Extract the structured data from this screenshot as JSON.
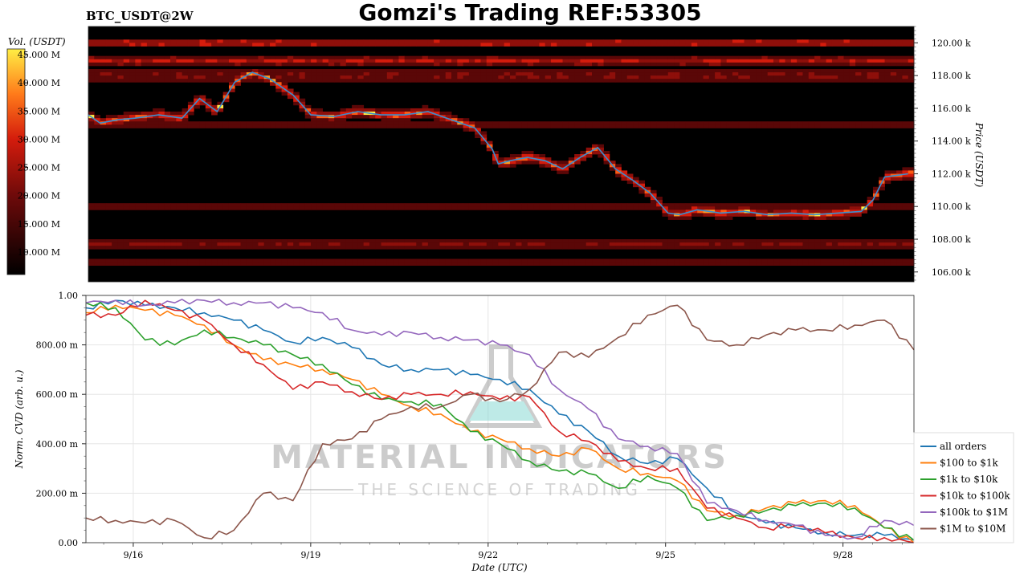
{
  "header": {
    "title": "Gomzi's Trading REF:53305",
    "subtitle": "BTC_USDT@2W"
  },
  "watermark": {
    "line1": "MATERIAL INDICATORS",
    "line2": "THE SCIENCE OF TRADING"
  },
  "colors": {
    "heat_low": "#000000",
    "heat_mid": "#d41c0c",
    "heat_high": "#ffee44",
    "price_line": "#3a8fd0",
    "all_orders": "#1f77b4",
    "usd_100_1k": "#ff7f0e",
    "usd_1k_10k": "#2ca02c",
    "usd_10k_100k": "#d62728",
    "usd_100k_1m": "#9467bd",
    "usd_1m_10m": "#8c564b"
  },
  "chart_data": [
    {
      "type": "heatmap",
      "title": "BTC_USDT@2W",
      "ylabel": "Price (USDT)",
      "y_ticks": [
        "106.00 k",
        "108.00 k",
        "110.00 k",
        "112.00 k",
        "114.00 k",
        "116.00 k",
        "118.00 k",
        "120.00 k"
      ],
      "ylim": [
        105.4,
        121.0
      ],
      "colorbar": {
        "label": "Vol. (USDT)",
        "ticks": [
          "10.000 M",
          "15.000 M",
          "20.000 M",
          "25.000 M",
          "30.000 M",
          "35.000 M",
          "40.000 M",
          "45.000 M"
        ],
        "range": [
          6,
          46
        ]
      },
      "price_x_days": [
        0.0,
        0.2,
        0.5,
        0.8,
        1.2,
        1.6,
        1.9,
        2.2,
        2.5,
        2.8,
        3.1,
        3.5,
        3.8,
        4.2,
        4.6,
        5.0,
        5.4,
        5.8,
        6.2,
        6.6,
        6.9,
        7.0,
        7.2,
        7.5,
        7.8,
        8.1,
        8.4,
        8.7,
        9.0,
        9.3,
        9.6,
        9.9,
        10.1,
        10.4,
        10.8,
        11.2,
        11.6,
        12.0,
        12.4,
        12.8,
        13.2,
        13.4,
        13.6,
        14.0
      ],
      "price_values": [
        115.6,
        115.1,
        115.3,
        115.4,
        115.6,
        115.4,
        116.6,
        115.8,
        117.6,
        118.2,
        117.8,
        116.8,
        115.6,
        115.5,
        115.8,
        115.6,
        115.6,
        115.8,
        115.3,
        114.8,
        113.5,
        112.6,
        112.8,
        113.0,
        112.8,
        112.3,
        113.0,
        113.6,
        112.3,
        111.6,
        110.8,
        109.6,
        109.5,
        109.8,
        109.6,
        109.7,
        109.5,
        109.6,
        109.5,
        109.6,
        109.7,
        110.4,
        111.8,
        112.0
      ]
    },
    {
      "type": "line",
      "xlabel": "Date (UTC)",
      "ylabel": "Norm. CVD (arb. u.)",
      "x_ticks": [
        "9/16",
        "9/19",
        "9/22",
        "9/25",
        "9/28"
      ],
      "y_ticks": [
        "0.00",
        "200.00 m",
        "400.00 m",
        "600.00 m",
        "800.00 m",
        "1.00"
      ],
      "ylim": [
        0,
        1
      ],
      "grid": true,
      "legend_position": "right",
      "x_days": [
        0.0,
        0.5,
        1.0,
        1.5,
        2.0,
        2.5,
        3.0,
        3.5,
        4.0,
        4.5,
        5.0,
        5.5,
        6.0,
        6.5,
        7.0,
        7.5,
        8.0,
        8.5,
        9.0,
        9.5,
        10.0,
        10.5,
        11.0,
        11.5,
        12.0,
        12.5,
        13.0,
        13.5,
        14.0
      ],
      "series": [
        {
          "name": "all orders",
          "color_key": "all_orders",
          "values": [
            0.95,
            0.98,
            0.96,
            0.95,
            0.93,
            0.9,
            0.86,
            0.81,
            0.83,
            0.79,
            0.72,
            0.7,
            0.7,
            0.68,
            0.66,
            0.62,
            0.52,
            0.45,
            0.35,
            0.32,
            0.34,
            0.22,
            0.12,
            0.08,
            0.06,
            0.04,
            0.03,
            0.03,
            0.01
          ]
        },
        {
          "name": "$100 to $1k",
          "color_key": "usd_100_1k",
          "values": [
            0.93,
            0.96,
            0.94,
            0.92,
            0.88,
            0.8,
            0.74,
            0.72,
            0.7,
            0.66,
            0.6,
            0.55,
            0.52,
            0.45,
            0.42,
            0.38,
            0.35,
            0.38,
            0.3,
            0.28,
            0.25,
            0.13,
            0.11,
            0.14,
            0.16,
            0.17,
            0.15,
            0.06,
            0.0
          ]
        },
        {
          "name": "$1k to $10k",
          "color_key": "usd_1k_10k",
          "values": [
            0.97,
            0.95,
            0.82,
            0.8,
            0.86,
            0.83,
            0.8,
            0.76,
            0.72,
            0.64,
            0.58,
            0.57,
            0.56,
            0.45,
            0.4,
            0.33,
            0.29,
            0.28,
            0.22,
            0.27,
            0.22,
            0.09,
            0.11,
            0.13,
            0.15,
            0.16,
            0.14,
            0.06,
            0.01
          ]
        },
        {
          "name": "$10k to $100k",
          "color_key": "usd_10k_100k",
          "values": [
            0.92,
            0.92,
            0.98,
            0.94,
            0.9,
            0.8,
            0.72,
            0.62,
            0.65,
            0.61,
            0.58,
            0.6,
            0.6,
            0.61,
            0.58,
            0.59,
            0.45,
            0.41,
            0.33,
            0.3,
            0.3,
            0.14,
            0.1,
            0.06,
            0.07,
            0.04,
            0.02,
            0.02,
            0.0
          ]
        },
        {
          "name": "$100k to $1M",
          "color_key": "usd_100k_1m",
          "values": [
            0.97,
            0.98,
            0.96,
            0.97,
            0.98,
            0.97,
            0.97,
            0.95,
            0.93,
            0.86,
            0.84,
            0.85,
            0.83,
            0.82,
            0.8,
            0.76,
            0.62,
            0.54,
            0.42,
            0.39,
            0.36,
            0.16,
            0.13,
            0.09,
            0.07,
            0.03,
            0.02,
            0.09,
            0.07
          ]
        },
        {
          "name": "$1M to $10M",
          "color_key": "usd_1m_10m",
          "values": [
            0.1,
            0.09,
            0.08,
            0.09,
            0.02,
            0.05,
            0.2,
            0.17,
            0.4,
            0.42,
            0.5,
            0.55,
            0.55,
            0.6,
            0.57,
            0.62,
            0.77,
            0.75,
            0.83,
            0.92,
            0.96,
            0.82,
            0.8,
            0.84,
            0.86,
            0.86,
            0.88,
            0.9,
            0.78
          ]
        }
      ]
    }
  ]
}
